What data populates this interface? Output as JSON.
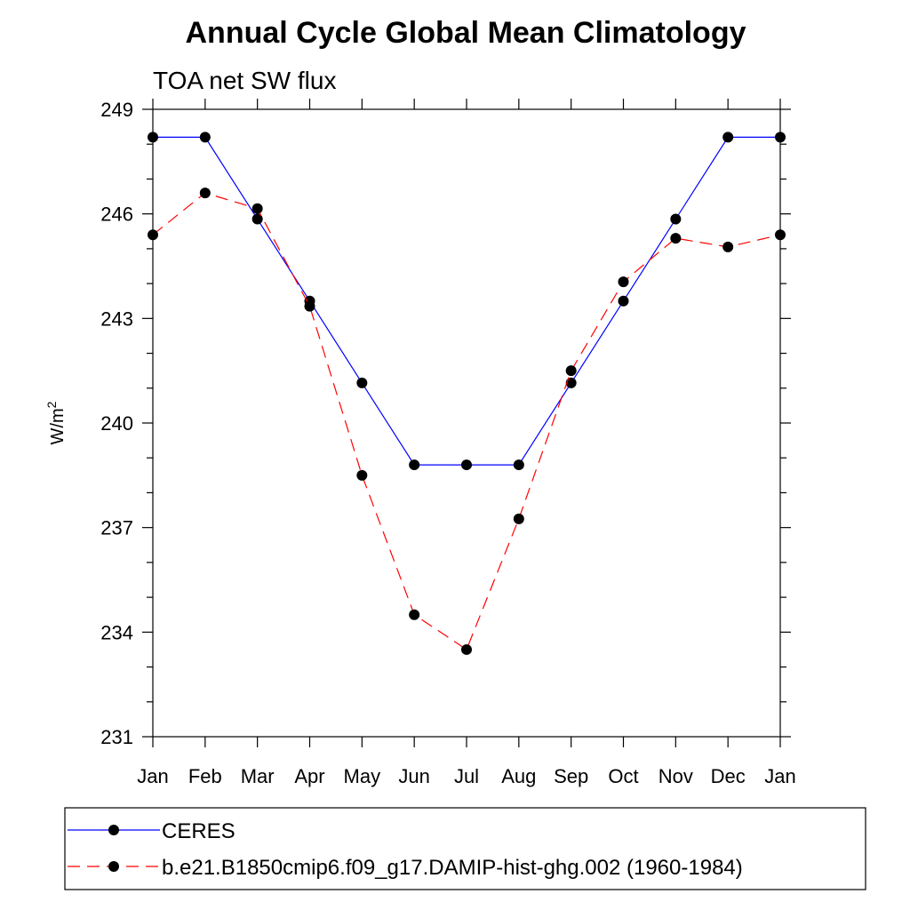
{
  "chart_data": {
    "type": "line",
    "title": "Annual Cycle Global Mean Climatology",
    "subtitle": "TOA net SW flux",
    "ylabel": "W/m",
    "ylabel_superscript": "2",
    "ylim": [
      231,
      249
    ],
    "yticks": [
      231,
      234,
      237,
      240,
      243,
      246,
      249
    ],
    "categories": [
      "Jan",
      "Feb",
      "Mar",
      "Apr",
      "May",
      "Jun",
      "Jul",
      "Aug",
      "Sep",
      "Oct",
      "Nov",
      "Dec",
      "Jan"
    ],
    "grid": false,
    "legend_position": "bottom",
    "series": [
      {
        "name": "CERES",
        "color": "#0000ff",
        "dashed": false,
        "values": [
          248.2,
          248.2,
          245.85,
          243.5,
          241.15,
          238.8,
          238.8,
          238.8,
          241.15,
          243.5,
          245.85,
          248.2,
          248.2
        ]
      },
      {
        "name": "b.e21.B1850cmip6.f09_g17.DAMIP-hist-ghg.002 (1960-1984)",
        "color": "#ff0000",
        "dashed": true,
        "values": [
          245.4,
          246.6,
          246.15,
          243.35,
          238.5,
          234.5,
          233.5,
          237.25,
          241.5,
          244.05,
          245.3,
          245.05,
          245.4
        ]
      }
    ]
  }
}
